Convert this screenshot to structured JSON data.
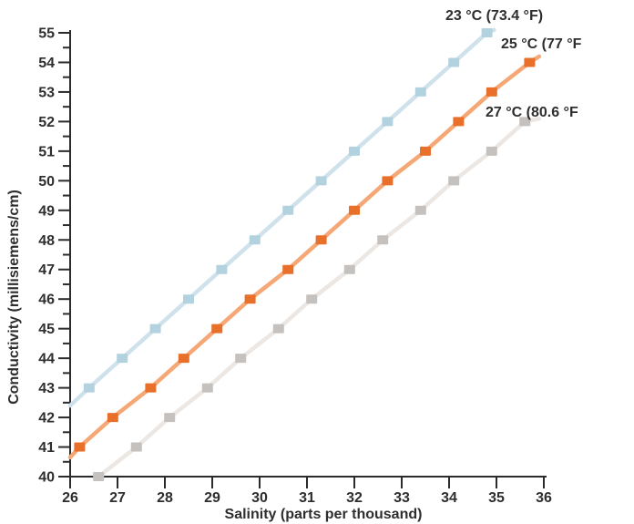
{
  "figure": {
    "background_color": "#ffffff",
    "axis_color": "#2b2b2b",
    "text_color": "#2e2e2e"
  },
  "chart_data": {
    "type": "line",
    "title": "",
    "xlabel": "Salinity (parts per thousand)",
    "ylabel": "Conductivity (millisiemens/cm)",
    "xlim": [
      26,
      36
    ],
    "ylim": [
      40,
      55
    ],
    "x_ticks": [
      26,
      27,
      28,
      29,
      30,
      31,
      32,
      33,
      34,
      35,
      36
    ],
    "y_ticks": [
      40,
      41,
      42,
      43,
      44,
      45,
      46,
      47,
      48,
      49,
      50,
      51,
      52,
      53,
      54,
      55
    ],
    "y_minor_tick_step": 0.5,
    "grid": false,
    "legend_position": "inline line-end labels",
    "marker_shape": "square",
    "series": [
      {
        "label": "23 °C (73.4 °F)",
        "temperature_c": 23,
        "line_color": "#cfe2ec",
        "marker_color": "#b3d2df",
        "points": [
          [
            26.4,
            43
          ],
          [
            27.1,
            44
          ],
          [
            27.8,
            45
          ],
          [
            28.5,
            46
          ],
          [
            29.2,
            47
          ],
          [
            29.9,
            48
          ],
          [
            30.6,
            49
          ],
          [
            31.3,
            50
          ],
          [
            32.0,
            51
          ],
          [
            32.7,
            52
          ],
          [
            33.4,
            53
          ],
          [
            34.1,
            54
          ],
          [
            34.8,
            55
          ]
        ],
        "line_start": [
          26.0,
          42.4
        ],
        "line_end": [
          34.95,
          55.1
        ]
      },
      {
        "label": "25 °C (77 °F",
        "temperature_c": 25,
        "line_color": "#f5a875",
        "marker_color": "#e8702b",
        "points": [
          [
            26.2,
            41
          ],
          [
            26.9,
            42
          ],
          [
            27.7,
            43
          ],
          [
            28.4,
            44
          ],
          [
            29.1,
            45
          ],
          [
            29.8,
            46
          ],
          [
            30.6,
            47
          ],
          [
            31.3,
            48
          ],
          [
            32.0,
            49
          ],
          [
            32.7,
            50
          ],
          [
            33.5,
            51
          ],
          [
            34.2,
            52
          ],
          [
            34.9,
            53
          ],
          [
            35.7,
            54
          ]
        ],
        "line_start": [
          26.0,
          40.65
        ],
        "line_end": [
          35.9,
          54.2
        ]
      },
      {
        "label": "27 °C (80.6 °F",
        "temperature_c": 27,
        "line_color": "#ece7e3",
        "marker_color": "#c4c1be",
        "points": [
          [
            26.6,
            40
          ],
          [
            27.4,
            41
          ],
          [
            28.1,
            42
          ],
          [
            28.9,
            43
          ],
          [
            29.6,
            44
          ],
          [
            30.4,
            45
          ],
          [
            31.1,
            46
          ],
          [
            31.9,
            47
          ],
          [
            32.6,
            48
          ],
          [
            33.4,
            49
          ],
          [
            34.1,
            50
          ],
          [
            34.9,
            51
          ],
          [
            35.6,
            52
          ]
        ],
        "line_start": [
          26.6,
          40.0
        ],
        "line_end": [
          35.9,
          52.1
        ]
      }
    ]
  }
}
